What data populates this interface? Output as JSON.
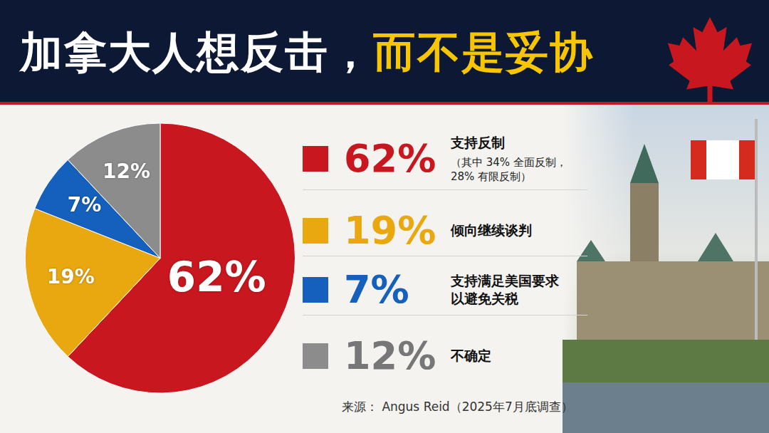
{
  "chart_data": {
    "type": "pie",
    "title": "加拿大人想反击，而不是妥协",
    "title_highlight": "而不是妥协",
    "categories": [
      "支持反制",
      "倾向继续谈判",
      "支持满足美国要求\n以避免关税",
      "不确定"
    ],
    "values": [
      62,
      19,
      7,
      12
    ],
    "value_labels": [
      "62%",
      "19%",
      "7%",
      "12%"
    ],
    "colors": [
      "#c8171e",
      "#e9a80f",
      "#1560bd",
      "#8c8c8c"
    ],
    "data_labels": true,
    "annotations": [
      {
        "category": "支持反制",
        "text": "（其中 34% 全面反制，\n28% 有限反制）"
      }
    ],
    "source": "来源： Angus Reid（2025年7月底调查）"
  }
}
